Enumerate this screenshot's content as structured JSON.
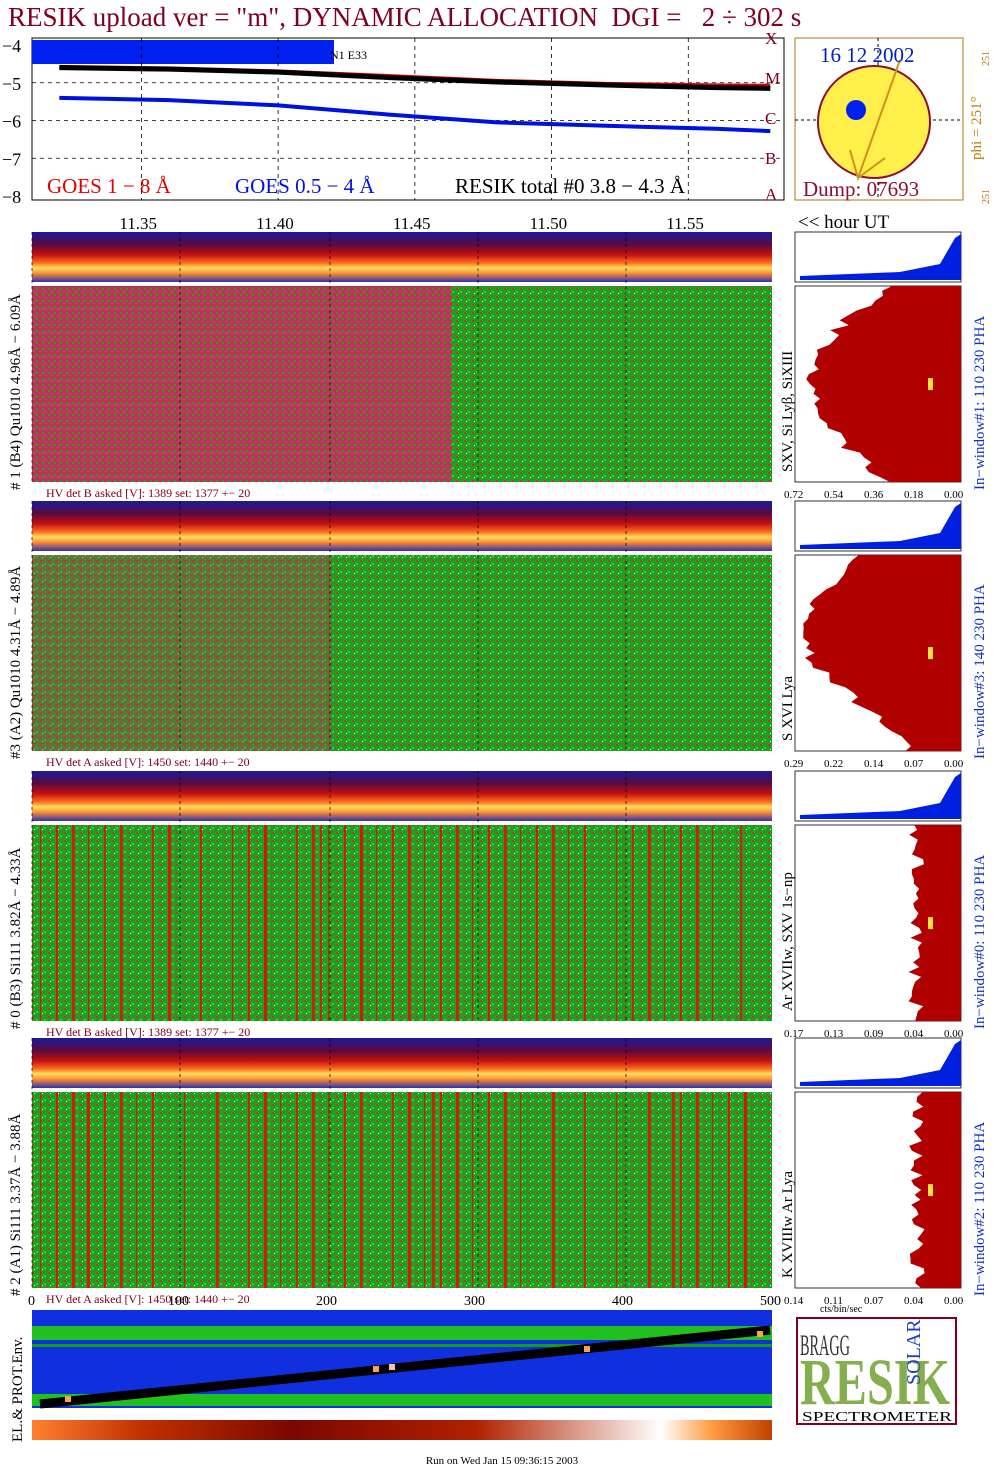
{
  "title": "RESIK upload ver = \"m\", DYNAMIC ALLOCATION  DGI =   2 ÷ 302 s",
  "goes": {
    "y_ticks": [
      "−4",
      "−5",
      "−6",
      "−7",
      "−8"
    ],
    "letters": [
      "X",
      "M",
      "C",
      "B",
      "A"
    ],
    "box_label": "N1 E33",
    "legend": [
      {
        "text": "GOES 1 − 8 Å",
        "color": "#e00000"
      },
      {
        "text": "GOES 0.5 − 4 Å",
        "color": "#0010e0"
      },
      {
        "text": "RESIK total #0  3.8 − 4.3 Å",
        "color": "#000000"
      }
    ]
  },
  "sun": {
    "date": "16 12 2002",
    "dump": "Dump: 07693",
    "phi": "phi = 251°",
    "top_small": "251",
    "bottom_small": "251"
  },
  "time_axis": {
    "ticks": [
      "11.35",
      "11.40",
      "11.45",
      "11.50",
      "11.55"
    ],
    "unit": "<< hour UT"
  },
  "channels": [
    {
      "left": "# 1 (B4) Qu1010 4.96Å − 6.09Å",
      "hv": "HV det B asked [V]:  1389 set:  1377  +−   20",
      "lines": "SXV, Si Lyβ, SiXIII",
      "window": "In−window#1:  110 230 PHA",
      "ticks": [
        "0.72",
        "0.54",
        "0.36",
        "0.18",
        "0.00"
      ]
    },
    {
      "left": "#3 (A2) Qu1010  4.31Å − 4.89Å",
      "hv": "HV det A asked [V]:  1450 set:  1440  +−   20",
      "lines": "S XVI Lya",
      "window": "In−window#3:  140 230 PHA",
      "ticks": [
        "0.29",
        "0.22",
        "0.14",
        "0.07",
        "0.00"
      ]
    },
    {
      "left": "# 0 (B3) Si111  3.82Å − 4.33Å",
      "hv": "HV det B asked [V]:  1389 set:  1377  +−   20",
      "lines": "Ar XVIIw,  SXV 1s−np",
      "window": "In−window#0:  110 230 PHA",
      "ticks": [
        "0.17",
        "0.13",
        "0.09",
        "0.04",
        "0.00"
      ]
    },
    {
      "left": "# 2 (A1) Si111  3.37Å − 3.88Å",
      "hv": "HV det A asked [V]:  1450 set:  1440  +−   20",
      "lines": "K XVIIIw  Ar Lya",
      "window": "In−window#2:  110 230 PHA",
      "ticks": [
        "0.14",
        "0.11",
        "0.07",
        "0.04",
        "0.00"
      ]
    }
  ],
  "bin_axis": {
    "ticks": [
      "0",
      "100",
      "200",
      "300",
      "400",
      "500"
    ],
    "unit": "cts/bin/sec"
  },
  "env_label": "EL.& PROT.Env.",
  "logo": {
    "word": "RESIK",
    "bragg": "BRAGG",
    "solar": "SOLAR",
    "spectrometer": "SPECTROMETER"
  },
  "footer": "Run on Wed Jan 15 09:36:15 2003",
  "chart_data": {
    "type": "line",
    "title": "",
    "x": [
      11.32,
      11.36,
      11.4,
      11.44,
      11.48,
      11.52,
      11.56,
      11.58
    ],
    "xlabel": "<< hour UT",
    "ylabel": "",
    "ylim": [
      -8,
      -4
    ],
    "xlim": [
      11.31,
      11.585
    ],
    "series": [
      {
        "name": "GOES 1 − 8 Å",
        "color": "#e00000",
        "values": [
          -4.58,
          -4.62,
          -4.7,
          -4.82,
          -4.95,
          -5.03,
          -5.07,
          -5.08
        ]
      },
      {
        "name": "GOES 0.5 − 4 Å",
        "color": "#0010e0",
        "values": [
          -5.4,
          -5.46,
          -5.6,
          -5.84,
          -6.05,
          -6.14,
          -6.22,
          -6.28
        ]
      },
      {
        "name": "RESIK total #0  3.8 − 4.3 Å",
        "color": "#000000",
        "values": [
          -4.6,
          -4.64,
          -4.72,
          -4.86,
          -4.98,
          -5.06,
          -5.13,
          -5.15
        ]
      }
    ]
  }
}
